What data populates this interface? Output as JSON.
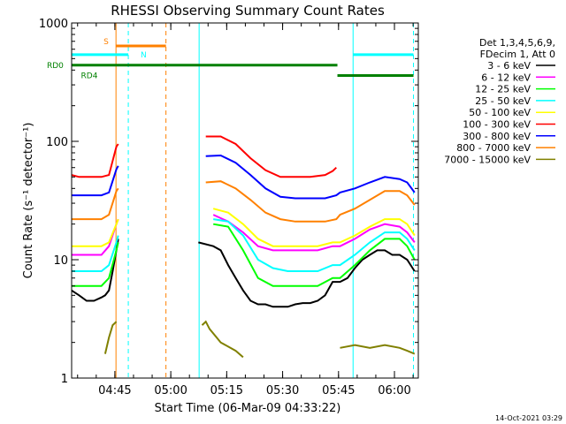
{
  "chart_data": {
    "type": "line",
    "title": "RHESSI Observing Summary Count Rates",
    "xlabel": "Start Time (06-Mar-09 04:33:22)",
    "ylabel": "Count Rate (s⁻¹ detector⁻¹)",
    "yscale": "log",
    "ylim": [
      1,
      1000
    ],
    "xlim_minutes": [
      0,
      93
    ],
    "y_ticks": [
      "1",
      "10",
      "100",
      "1000"
    ],
    "x_ticks": [
      {
        "label": "04:45",
        "minute": 11.6
      },
      {
        "label": "05:00",
        "minute": 26.6
      },
      {
        "label": "05:15",
        "minute": 41.6
      },
      {
        "label": "05:30",
        "minute": 56.6
      },
      {
        "label": "05:45",
        "minute": 71.6
      },
      {
        "label": "06:00",
        "minute": 86.6
      }
    ],
    "legend_header": [
      "Det 1,3,4,5,6,9,",
      "FDecim 1, Att 0"
    ],
    "series": [
      {
        "name": "3 - 6 keV",
        "color": "#000000",
        "x": [
          0,
          2,
          4,
          6,
          8,
          9,
          10,
          11,
          12,
          12.5,
          13,
          14,
          18,
          22,
          26,
          30,
          34,
          38,
          40,
          42,
          44,
          46,
          48,
          50,
          52,
          54,
          56,
          58,
          60,
          62,
          64,
          66,
          68,
          70,
          72,
          74,
          76,
          78,
          80,
          82,
          84,
          86,
          88,
          90,
          92
        ],
        "y": [
          5.5,
          5.0,
          4.5,
          4.5,
          4.8,
          5.0,
          5.5,
          8,
          12,
          15,
          null,
          null,
          null,
          null,
          null,
          null,
          14,
          13,
          12,
          9,
          7,
          5.5,
          4.5,
          4.2,
          4.2,
          4.0,
          4.0,
          4.0,
          4.2,
          4.3,
          4.3,
          4.5,
          5.0,
          6.5,
          6.5,
          7.0,
          8.5,
          10,
          11,
          12,
          12,
          11,
          11,
          10,
          8
        ]
      },
      {
        "name": "6 - 12 keV",
        "color": "#ff00ff",
        "x": [
          0,
          4,
          8,
          10,
          12,
          12.5,
          34,
          38,
          42,
          46,
          50,
          54,
          58,
          62,
          66,
          70,
          72,
          76,
          80,
          84,
          88,
          90,
          92
        ],
        "y": [
          11,
          11,
          11,
          13,
          20,
          22,
          null,
          24,
          21,
          17,
          13,
          12,
          12,
          12,
          12,
          13,
          13,
          15,
          18,
          20,
          19,
          17,
          14
        ]
      },
      {
        "name": "12 - 25 keV",
        "color": "#00ff00",
        "x": [
          0,
          4,
          8,
          10,
          12,
          12.5,
          34,
          38,
          42,
          46,
          50,
          54,
          58,
          62,
          66,
          70,
          72,
          76,
          80,
          84,
          88,
          90,
          92
        ],
        "y": [
          6,
          6,
          6,
          7,
          12,
          14,
          null,
          20,
          19,
          12,
          7,
          6,
          6,
          6,
          6,
          7,
          7,
          9,
          12,
          15,
          15,
          13,
          10
        ]
      },
      {
        "name": "25 - 50 keV",
        "color": "#00ffff",
        "x": [
          0,
          4,
          8,
          10,
          12,
          12.5,
          34,
          38,
          42,
          46,
          50,
          54,
          58,
          62,
          66,
          70,
          72,
          76,
          80,
          84,
          88,
          90,
          92
        ],
        "y": [
          8,
          8,
          8,
          9,
          14,
          16,
          null,
          22,
          21,
          16,
          10,
          8.5,
          8,
          8,
          8,
          9,
          9,
          11,
          14,
          17,
          17,
          15,
          12
        ]
      },
      {
        "name": "50 - 100 keV",
        "color": "#ffff00",
        "x": [
          0,
          4,
          8,
          10,
          12,
          12.5,
          34,
          38,
          42,
          46,
          50,
          54,
          58,
          62,
          66,
          70,
          72,
          76,
          80,
          84,
          88,
          90,
          92
        ],
        "y": [
          13,
          13,
          13,
          14,
          20,
          22,
          null,
          27,
          25,
          20,
          15,
          13,
          13,
          13,
          13,
          14,
          14,
          16,
          19,
          22,
          22,
          20,
          16
        ]
      },
      {
        "name": "100 - 300 keV",
        "color": "#ff0000",
        "x": [
          0,
          2,
          4,
          6,
          8,
          10,
          12,
          12.5,
          34,
          36,
          40,
          44,
          48,
          52,
          56,
          60,
          64,
          68,
          70,
          71,
          72,
          76,
          80,
          84,
          88,
          90,
          92
        ],
        "y": [
          52,
          50,
          50,
          50,
          50,
          52,
          90,
          95,
          null,
          110,
          110,
          95,
          72,
          57,
          50,
          50,
          50,
          52,
          56,
          60,
          null,
          null,
          null,
          null,
          null,
          null,
          null
        ]
      },
      {
        "name": "300 - 800 keV",
        "color": "#0000ff",
        "x": [
          0,
          4,
          8,
          10,
          12,
          12.5,
          34,
          36,
          40,
          44,
          48,
          52,
          56,
          60,
          64,
          68,
          71,
          72,
          76,
          80,
          84,
          88,
          90,
          92
        ],
        "y": [
          35,
          35,
          35,
          37,
          58,
          62,
          null,
          75,
          76,
          66,
          52,
          40,
          34,
          33,
          33,
          33,
          35,
          37,
          40,
          45,
          50,
          48,
          45,
          37
        ]
      },
      {
        "name": "800 - 7000 keV",
        "color": "#ff8000",
        "x": [
          0,
          4,
          8,
          10,
          12,
          12.5,
          34,
          36,
          40,
          44,
          48,
          52,
          56,
          60,
          64,
          68,
          71,
          72,
          76,
          80,
          84,
          88,
          90,
          92
        ],
        "y": [
          22,
          22,
          22,
          24,
          38,
          40,
          null,
          45,
          46,
          40,
          32,
          25,
          22,
          21,
          21,
          21,
          22,
          24,
          27,
          32,
          38,
          38,
          35,
          29
        ]
      },
      {
        "name": "7000 - 15000 keV",
        "color": "#808000",
        "x": [
          0,
          8,
          9,
          10,
          11,
          12,
          26,
          34,
          35,
          36,
          37,
          40,
          44,
          46,
          48,
          70,
          71,
          72,
          76,
          80,
          84,
          88,
          90,
          92
        ],
        "y": [
          null,
          null,
          1.6,
          2.2,
          2.8,
          3.0,
          null,
          null,
          2.8,
          3.0,
          2.6,
          2.0,
          1.7,
          1.5,
          null,
          null,
          null,
          1.8,
          1.9,
          1.8,
          1.9,
          1.8,
          1.7,
          1.6
        ]
      }
    ],
    "status_bars": [
      {
        "label": "S",
        "color": "#ff8000",
        "x_start": 11.9,
        "x_end": 25.3,
        "y": 640
      },
      {
        "label": "N",
        "color": "#00ffff",
        "x_start": 0,
        "x_end": 15.2,
        "y": 540
      },
      {
        "label": "N",
        "color": "#00ffff",
        "x_start": 75.5,
        "x_end": 91.7,
        "y": 540
      },
      {
        "label": "RD0",
        "color": "#008000",
        "x_start": 0,
        "x_end": 71.3,
        "y": 440
      },
      {
        "label": "RD4",
        "color": "#008000",
        "x_start": 71.3,
        "x_end": 91.7,
        "y": 360
      }
    ],
    "vertical_markers": [
      {
        "minute": 0,
        "color": "#00ffff",
        "style": "solid"
      },
      {
        "minute": 11.9,
        "color": "#ff8000",
        "style": "solid"
      },
      {
        "minute": 15.2,
        "color": "#00ffff",
        "style": "dashed"
      },
      {
        "minute": 25.3,
        "color": "#ff8000",
        "style": "dashed"
      },
      {
        "minute": 34.2,
        "color": "#00ffff",
        "style": "solid"
      },
      {
        "minute": 75.5,
        "color": "#00ffff",
        "style": "solid"
      },
      {
        "minute": 91.7,
        "color": "#00ffff",
        "style": "dashed"
      }
    ],
    "footer_timestamp": "14-Oct-2021 03:29"
  }
}
